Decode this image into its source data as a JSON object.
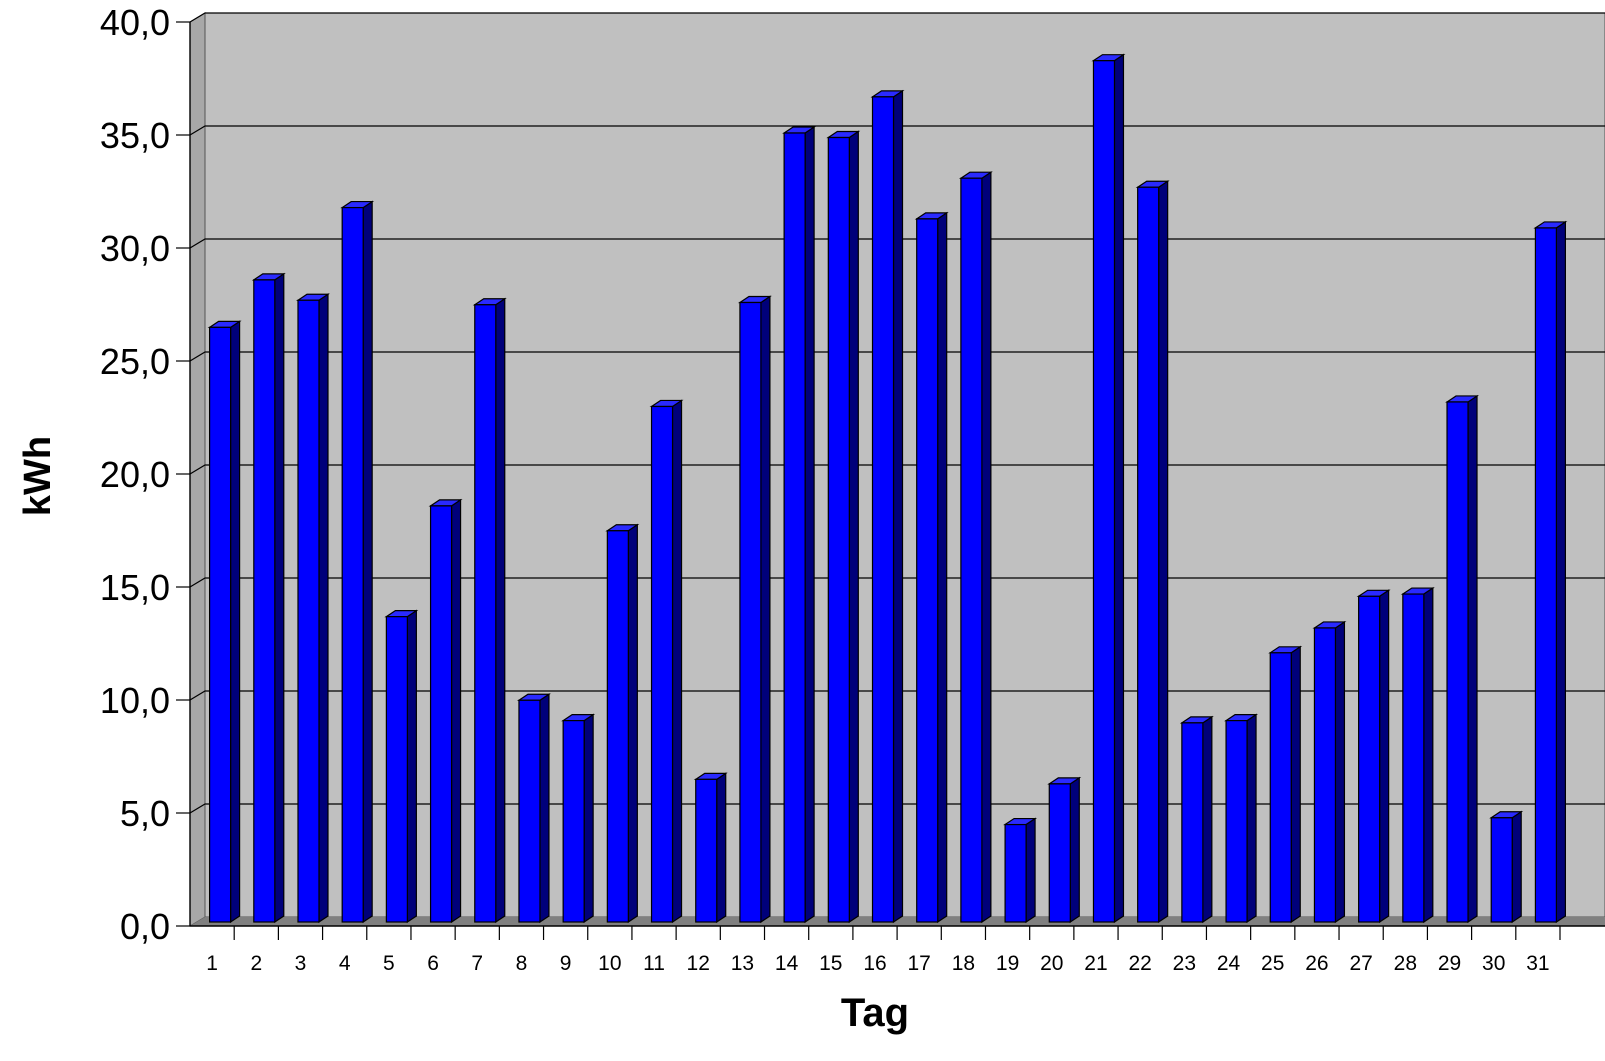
{
  "chart_data": {
    "type": "bar",
    "title": "",
    "xlabel": "Tag",
    "ylabel": "kWh",
    "ylim": [
      0,
      40
    ],
    "y_ticks": [
      "0,0",
      "5,0",
      "10,0",
      "15,0",
      "20,0",
      "25,0",
      "30,0",
      "35,0",
      "40,0"
    ],
    "categories": [
      "1",
      "2",
      "3",
      "4",
      "5",
      "6",
      "7",
      "8",
      "9",
      "10",
      "11",
      "12",
      "13",
      "14",
      "15",
      "16",
      "17",
      "18",
      "19",
      "20",
      "21",
      "22",
      "23",
      "24",
      "25",
      "26",
      "27",
      "28",
      "29",
      "30",
      "31"
    ],
    "series": [
      {
        "values": [
          26.4,
          28.5,
          27.6,
          31.7,
          13.6,
          18.5,
          27.4,
          9.9,
          9.0,
          17.4,
          22.9,
          6.4,
          27.5,
          35.0,
          34.8,
          36.6,
          31.2,
          33.0,
          4.4,
          6.2,
          38.2,
          32.6,
          8.9,
          9.0,
          12.0,
          13.1,
          14.5,
          14.6,
          23.1,
          4.7,
          30.8
        ]
      }
    ],
    "grid": true,
    "legend": "none",
    "colors": {
      "bar_front": "#0000ff",
      "bar_side": "#00007a",
      "bar_top": "#2a2aff",
      "plot_back": "#c0c0c0",
      "floor": "#808080",
      "side_wall": "#a8a8a8",
      "gridline": "#000000"
    }
  }
}
